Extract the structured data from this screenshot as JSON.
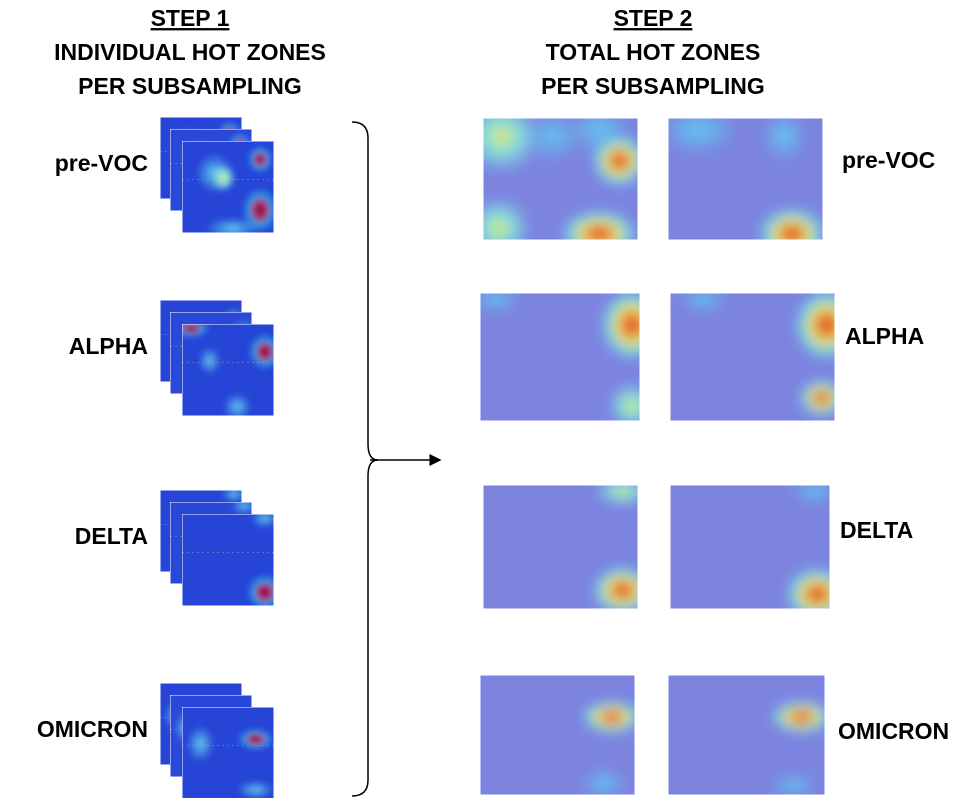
{
  "step1": {
    "step": "STEP 1",
    "line1": "INDIVIDUAL HOT ZONES",
    "line2": "PER SUBSAMPLING"
  },
  "step2": {
    "step": "STEP 2",
    "line1": "TOTAL HOT ZONES",
    "line2": "PER SUBSAMPLING"
  },
  "left_labels": [
    "pre-VOC",
    "ALPHA",
    "DELTA",
    "OMICRON"
  ],
  "right_labels": [
    "pre-VOC",
    "ALPHA",
    "DELTA",
    "OMICRON"
  ]
}
